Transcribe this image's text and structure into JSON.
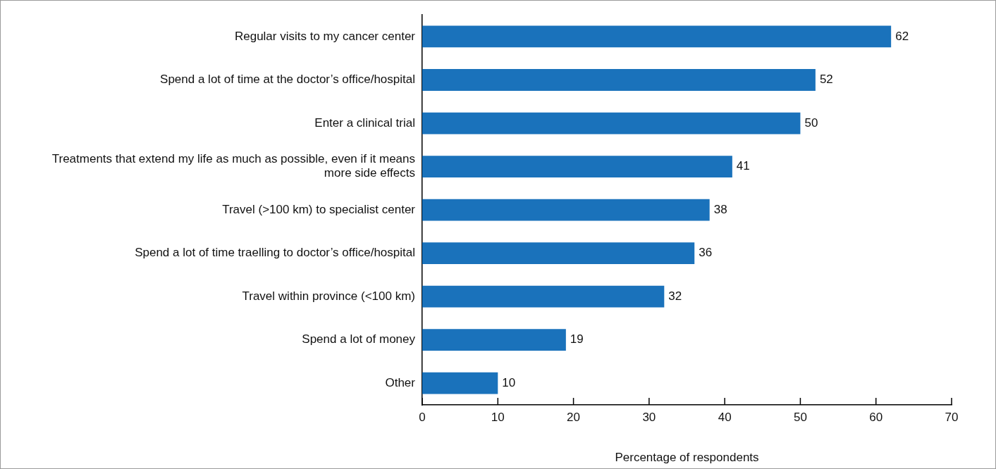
{
  "chart_data": {
    "type": "bar",
    "orientation": "horizontal",
    "categories": [
      "Regular visits to my cancer center",
      "Spend a lot of time at the doctor’s office/hospital",
      "Enter a clinical trial",
      "Treatments that extend my life as much as possible, even if it means more side effects",
      "Travel (>100 km) to specialist center",
      "Spend a lot of time traelling to doctor’s office/hospital",
      "Travel within province (<100 km)",
      "Spend a lot of money",
      "Other"
    ],
    "values": [
      62,
      52,
      50,
      41,
      38,
      36,
      32,
      19,
      10
    ],
    "color": "#1a72bb",
    "xlabel": "Percentage of respondents",
    "xlim": [
      0,
      70
    ],
    "xticks": [
      0,
      10,
      20,
      30,
      40,
      50,
      60,
      70
    ],
    "data_labels": true
  }
}
